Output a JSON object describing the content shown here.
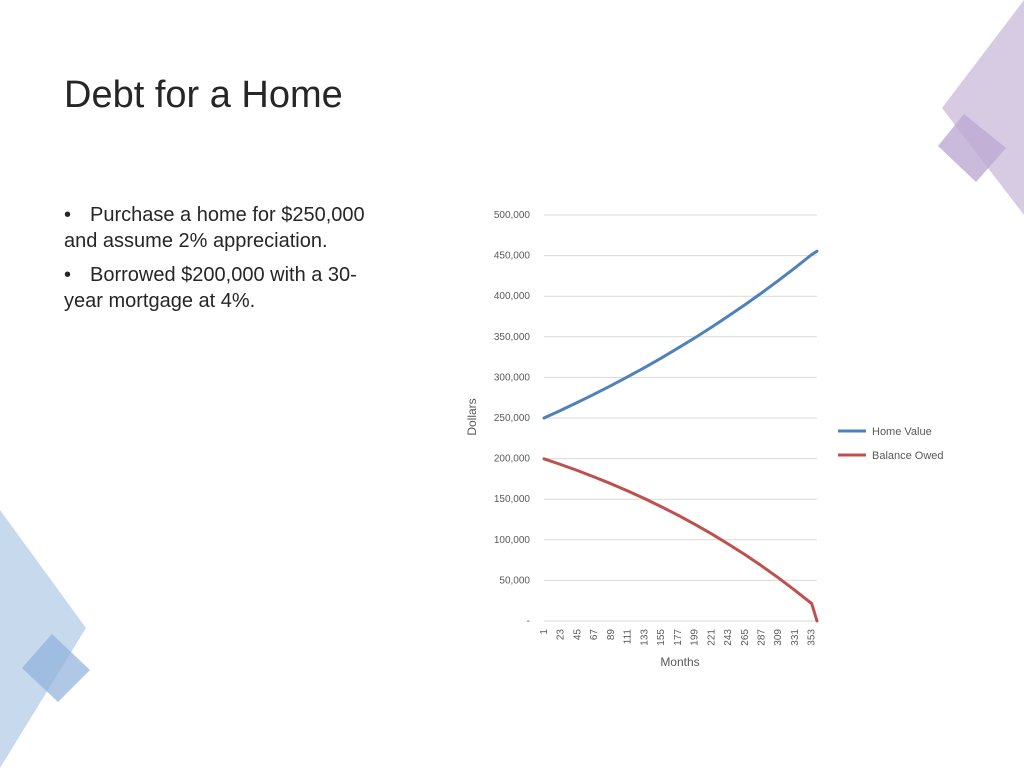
{
  "slide": {
    "title": "Debt for a Home",
    "bullets": [
      "Purchase a home for $250,000 and assume 2% appreciation.",
      "Borrowed $200,000 with a 30-year mortgage at 4%."
    ]
  },
  "colors": {
    "home_value": "#4f81bd",
    "balance_owed": "#c0504d",
    "gridline": "#d9d9d9",
    "decor_purple": "#c9b8d9",
    "decor_blue": "#a9c4e4"
  },
  "chart_data": {
    "type": "line",
    "title": "",
    "xlabel": "Months",
    "ylabel": "Dollars",
    "ylim": [
      0,
      500000
    ],
    "y_ticks": [
      0,
      50000,
      100000,
      150000,
      200000,
      250000,
      300000,
      350000,
      400000,
      450000,
      500000
    ],
    "y_tick_labels": [
      "-",
      "50,000",
      "100,000",
      "150,000",
      "200,000",
      "250,000",
      "300,000",
      "350,000",
      "400,000",
      "450,000",
      "500,000"
    ],
    "x_tick_labels": [
      "1",
      "23",
      "45",
      "67",
      "89",
      "111",
      "133",
      "155",
      "177",
      "199",
      "221",
      "243",
      "265",
      "287",
      "309",
      "331",
      "353"
    ],
    "x_range": [
      1,
      360
    ],
    "grid": true,
    "legend_position": "right",
    "series": [
      {
        "name": "Home   Value",
        "x": [
          1,
          23,
          45,
          67,
          89,
          111,
          133,
          155,
          177,
          199,
          221,
          243,
          265,
          287,
          309,
          331,
          353,
          360
        ],
        "values": [
          250000,
          259400,
          269200,
          279300,
          289800,
          300700,
          312000,
          323700,
          335900,
          348500,
          361600,
          375200,
          389300,
          403900,
          419100,
          434800,
          451200,
          455400
        ]
      },
      {
        "name": "Balance   Owed",
        "x": [
          1,
          23,
          45,
          67,
          89,
          111,
          133,
          155,
          177,
          199,
          221,
          243,
          265,
          287,
          309,
          331,
          353,
          360
        ],
        "values": [
          199700,
          192700,
          185300,
          177400,
          169100,
          160200,
          150900,
          140900,
          130400,
          119200,
          107500,
          95000,
          81900,
          68000,
          53300,
          37800,
          21400,
          0
        ]
      }
    ]
  }
}
